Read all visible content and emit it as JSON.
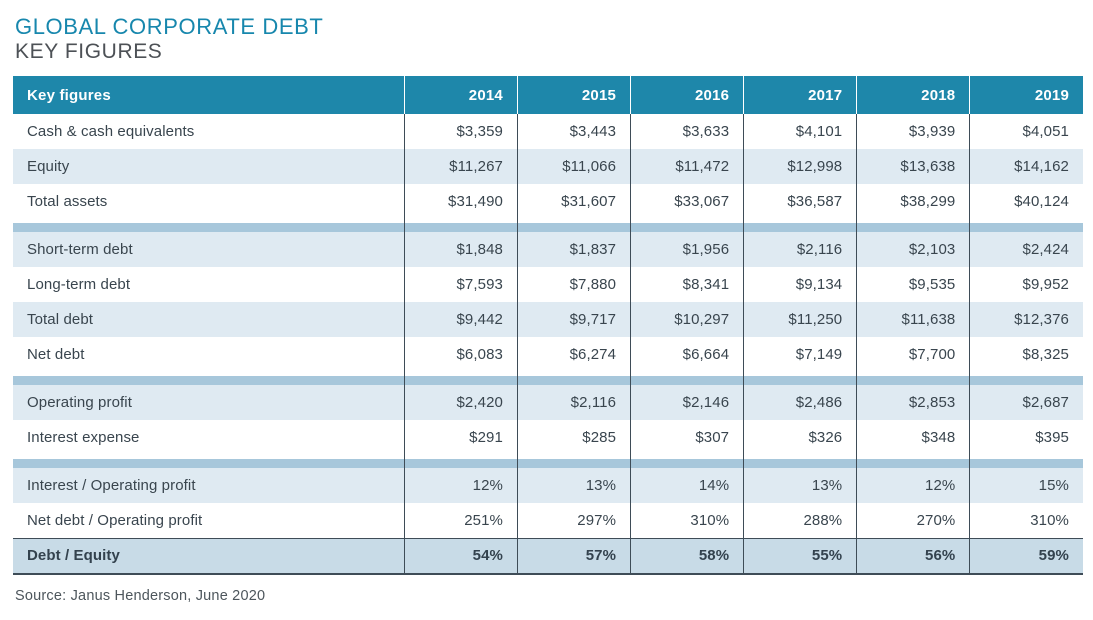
{
  "title": {
    "line1": "GLOBAL CORPORATE DEBT",
    "line2": "KEY FIGURES"
  },
  "source": "Source: Janus Henderson, June 2020",
  "colors": {
    "header_teal": "#1e87aa",
    "title_teal": "#1787ad",
    "title_gray": "#4d5156",
    "row_light_blue": "#dfeaf2",
    "separator_band_blue": "#a7c7db",
    "final_row_blue": "#c8dbe7",
    "grid_line": "#3e4c57",
    "text_dark": "#39454e"
  },
  "chart_data": {
    "type": "table",
    "title": "GLOBAL CORPORATE DEBT — KEY FIGURES",
    "columns": [
      "Key figures",
      "2014",
      "2015",
      "2016",
      "2017",
      "2018",
      "2019"
    ],
    "rows": [
      {
        "label": "Cash & cash equivalents",
        "values": [
          "$3,359",
          "$3,443",
          "$3,633",
          "$4,101",
          "$3,939",
          "$4,051"
        ]
      },
      {
        "label": "Equity",
        "values": [
          "$11,267",
          "$11,066",
          "$11,472",
          "$12,998",
          "$13,638",
          "$14,162"
        ]
      },
      {
        "label": "Total assets",
        "values": [
          "$31,490",
          "$31,607",
          "$33,067",
          "$36,587",
          "$38,299",
          "$40,124"
        ]
      },
      {
        "label": "Short-term debt",
        "values": [
          "$1,848",
          "$1,837",
          "$1,956",
          "$2,116",
          "$2,103",
          "$2,424"
        ]
      },
      {
        "label": "Long-term debt",
        "values": [
          "$7,593",
          "$7,880",
          "$8,341",
          "$9,134",
          "$9,535",
          "$9,952"
        ]
      },
      {
        "label": "Total debt",
        "values": [
          "$9,442",
          "$9,717",
          "$10,297",
          "$11,250",
          "$11,638",
          "$12,376"
        ]
      },
      {
        "label": "Net debt",
        "values": [
          "$6,083",
          "$6,274",
          "$6,664",
          "$7,149",
          "$7,700",
          "$8,325"
        ]
      },
      {
        "label": "Operating profit",
        "values": [
          "$2,420",
          "$2,116",
          "$2,146",
          "$2,486",
          "$2,853",
          "$2,687"
        ]
      },
      {
        "label": "Interest expense",
        "values": [
          "$291",
          "$285",
          "$307",
          "$326",
          "$348",
          "$395"
        ]
      },
      {
        "label": "Interest / Operating profit",
        "values": [
          "12%",
          "13%",
          "14%",
          "13%",
          "12%",
          "15%"
        ]
      },
      {
        "label": "Net debt / Operating profit",
        "values": [
          "251%",
          "297%",
          "310%",
          "288%",
          "270%",
          "310%"
        ]
      },
      {
        "label": "Debt / Equity",
        "values": [
          "54%",
          "57%",
          "58%",
          "55%",
          "56%",
          "59%"
        ]
      }
    ],
    "section_groups": [
      [
        0,
        1,
        2
      ],
      [
        3,
        4,
        5,
        6
      ],
      [
        7,
        8
      ],
      [
        9,
        10,
        11
      ]
    ],
    "legend_position": "none",
    "grid": "vertical-dividers-only"
  }
}
